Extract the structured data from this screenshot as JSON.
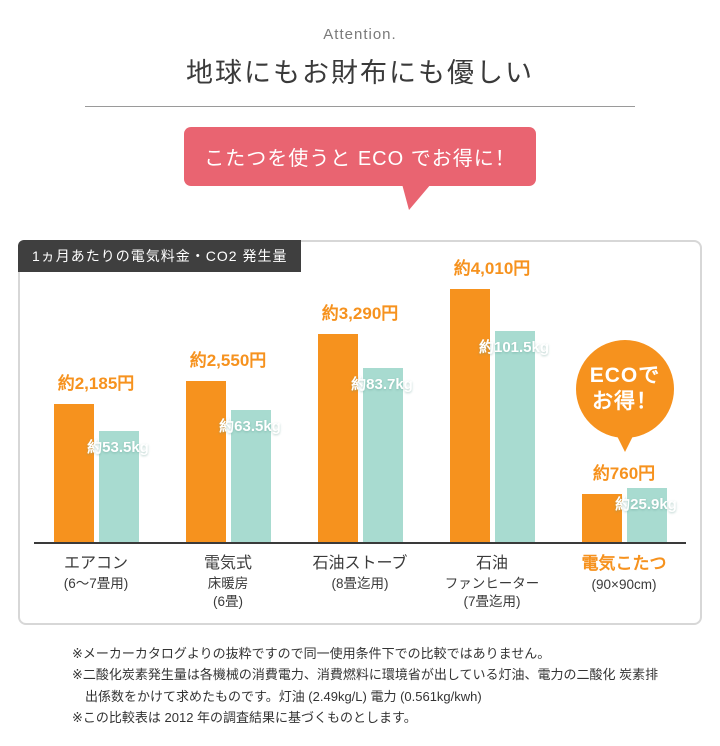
{
  "header": {
    "attention": "Attention.",
    "title": "地球にもお財布にも優しい"
  },
  "bubble": {
    "text": "こたつを使うと ECO でお得に！"
  },
  "chart": {
    "badge": "1ヵ月あたりの電気料金・CO2 発生量",
    "eco_badge": {
      "line1": "ECOで",
      "line2": "お得！"
    }
  },
  "chart_data": {
    "type": "bar",
    "title": "1ヵ月あたりの電気料金・CO2発生量",
    "categories": [
      {
        "lines": [
          "エアコン",
          "(6〜7畳用)"
        ],
        "highlight": false
      },
      {
        "lines": [
          "電気式",
          "床暖房",
          "(6畳)"
        ],
        "highlight": false
      },
      {
        "lines": [
          "石油ストーブ",
          "(8畳迄用)"
        ],
        "highlight": false
      },
      {
        "lines": [
          "石油",
          "ファンヒーター",
          "(7畳迄用)"
        ],
        "highlight": false
      },
      {
        "lines": [
          "電気こたつ",
          "(90×90cm)"
        ],
        "highlight": true
      }
    ],
    "series": [
      {
        "name": "電気料金",
        "unit": "円",
        "color": "#f6921e",
        "values": [
          2185,
          2550,
          3290,
          4010,
          760
        ],
        "labels": [
          "約2,185円",
          "約2,550円",
          "約3,290円",
          "約4,010円",
          "約760円"
        ]
      },
      {
        "name": "CO2発生量",
        "unit": "kg",
        "color": "#a8dbd0",
        "values": [
          53.5,
          63.5,
          83.7,
          101.5,
          25.9
        ],
        "labels": [
          "約53.5kg",
          "約63.5kg",
          "約83.7kg",
          "約101.5kg",
          "約25.9kg"
        ]
      }
    ],
    "ylim_yen": [
      0,
      4200
    ],
    "ylim_kg": [
      0,
      106
    ],
    "grid": false,
    "legend": "none"
  },
  "footnotes": [
    "※メーカーカタログよりの抜粋ですので同一使用条件下での比較ではありません。",
    "※二酸化炭素発生量は各機械の消費電力、消費燃料に環境省が出している灯油、電力の二酸化 炭素排出係数をかけて求めたものです。灯油 (2.49kg/L) 電力 (0.561kg/kwh)",
    "※この比較表は 2012 年の調査結果に基づくものとします。"
  ],
  "colors": {
    "orange": "#f6921e",
    "teal": "#a8dbd0",
    "pink": "#e96471",
    "dark": "#3f3f3f"
  }
}
